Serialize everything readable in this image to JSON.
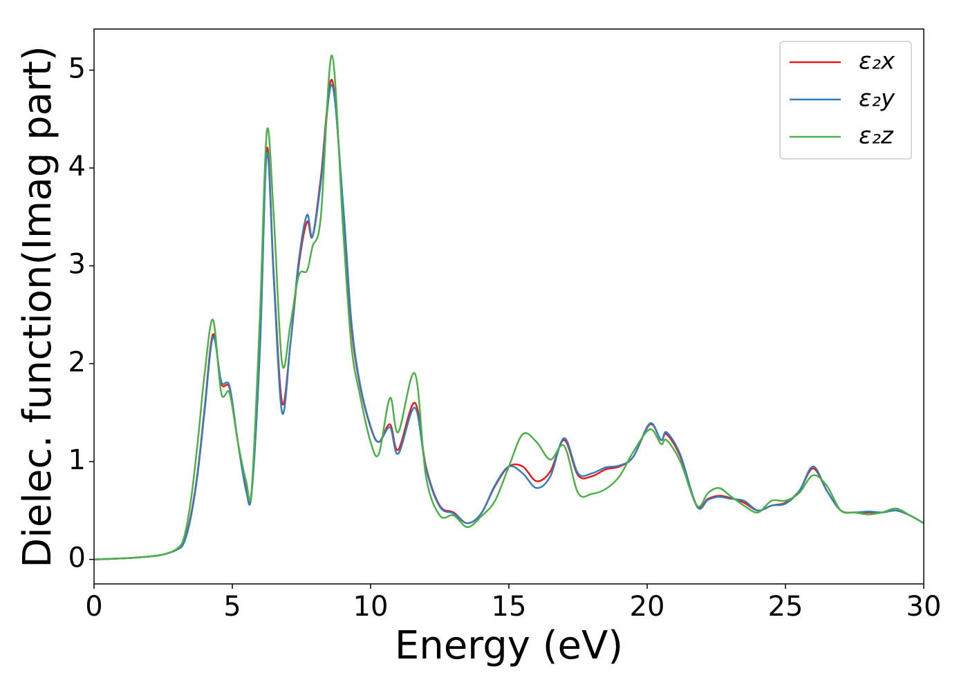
{
  "chart_data": {
    "type": "line",
    "x_label": "Energy (eV)",
    "y_label": "Dielec. function(Imag part)",
    "x": [
      0,
      1,
      2,
      2.5,
      3,
      3.25,
      3.5,
      3.75,
      4,
      4.3,
      4.6,
      4.9,
      5.2,
      5.5,
      5.7,
      6.0,
      6.25,
      6.5,
      6.8,
      7.1,
      7.4,
      7.7,
      7.9,
      8.2,
      8.6,
      9.0,
      9.3,
      9.6,
      10.0,
      10.3,
      10.7,
      11.0,
      11.6,
      12.0,
      12.5,
      13.0,
      13.5,
      14.0,
      14.5,
      15.0,
      15.5,
      16.0,
      16.5,
      17.0,
      17.5,
      18.0,
      18.5,
      19.0,
      19.5,
      20.1,
      20.5,
      20.7,
      21.2,
      21.8,
      22.2,
      22.6,
      23.0,
      23.5,
      24.0,
      24.5,
      25.0,
      25.5,
      26.0,
      26.5,
      27.0,
      27.5,
      28.0,
      28.5,
      29.0,
      29.5,
      30.0
    ],
    "series": [
      {
        "name": "ε₂x",
        "color": "#e41a1c",
        "values": [
          0,
          0.01,
          0.03,
          0.05,
          0.1,
          0.18,
          0.45,
          0.9,
          1.55,
          2.3,
          1.8,
          1.75,
          1.2,
          0.72,
          0.7,
          2.2,
          4.2,
          2.9,
          1.6,
          2.2,
          3.0,
          3.45,
          3.3,
          3.9,
          4.9,
          3.6,
          2.4,
          1.8,
          1.35,
          1.2,
          1.38,
          1.12,
          1.6,
          0.95,
          0.55,
          0.48,
          0.37,
          0.47,
          0.75,
          0.95,
          0.95,
          0.8,
          0.9,
          1.22,
          0.86,
          0.85,
          0.92,
          0.95,
          1.05,
          1.38,
          1.22,
          1.28,
          1.05,
          0.55,
          0.62,
          0.65,
          0.63,
          0.58,
          0.5,
          0.55,
          0.58,
          0.7,
          0.93,
          0.7,
          0.5,
          0.48,
          0.48,
          0.48,
          0.5,
          0.45,
          0.37
        ]
      },
      {
        "name": "ε₂y",
        "color": "#377eb8",
        "values": [
          0,
          0.01,
          0.03,
          0.05,
          0.1,
          0.17,
          0.43,
          0.88,
          1.52,
          2.27,
          1.82,
          1.77,
          1.2,
          0.7,
          0.68,
          2.15,
          4.15,
          2.85,
          1.5,
          2.2,
          3.05,
          3.52,
          3.3,
          3.85,
          4.85,
          3.65,
          2.45,
          1.82,
          1.36,
          1.2,
          1.35,
          1.08,
          1.55,
          0.93,
          0.54,
          0.47,
          0.37,
          0.47,
          0.76,
          0.95,
          0.88,
          0.73,
          0.85,
          1.24,
          0.88,
          0.88,
          0.94,
          0.96,
          1.05,
          1.39,
          1.22,
          1.3,
          1.07,
          0.54,
          0.61,
          0.64,
          0.62,
          0.6,
          0.5,
          0.55,
          0.57,
          0.7,
          0.95,
          0.7,
          0.5,
          0.48,
          0.49,
          0.48,
          0.5,
          0.45,
          0.37
        ]
      },
      {
        "name": "ε₂z",
        "color": "#4daf4a",
        "values": [
          0,
          0.01,
          0.03,
          0.05,
          0.11,
          0.22,
          0.6,
          1.2,
          1.9,
          2.45,
          1.7,
          1.7,
          1.2,
          0.8,
          0.72,
          2.5,
          4.38,
          3.5,
          2.0,
          2.4,
          2.9,
          2.95,
          3.2,
          3.5,
          5.15,
          3.4,
          2.2,
          1.7,
          1.2,
          1.08,
          1.65,
          1.3,
          1.9,
          0.85,
          0.45,
          0.45,
          0.33,
          0.44,
          0.6,
          0.95,
          1.28,
          1.2,
          1.02,
          1.16,
          0.68,
          0.67,
          0.72,
          0.85,
          1.1,
          1.33,
          1.18,
          1.22,
          1.0,
          0.55,
          0.68,
          0.73,
          0.65,
          0.55,
          0.48,
          0.6,
          0.6,
          0.68,
          0.86,
          0.75,
          0.5,
          0.48,
          0.46,
          0.48,
          0.52,
          0.45,
          0.37
        ]
      }
    ],
    "xlim": [
      0,
      30
    ],
    "xticks": [
      0,
      5,
      10,
      15,
      20,
      25,
      30
    ],
    "ylim": [
      -0.25,
      5.42
    ],
    "yticks": [
      0,
      1,
      2,
      3,
      4,
      5
    ],
    "legend": "upper right"
  }
}
